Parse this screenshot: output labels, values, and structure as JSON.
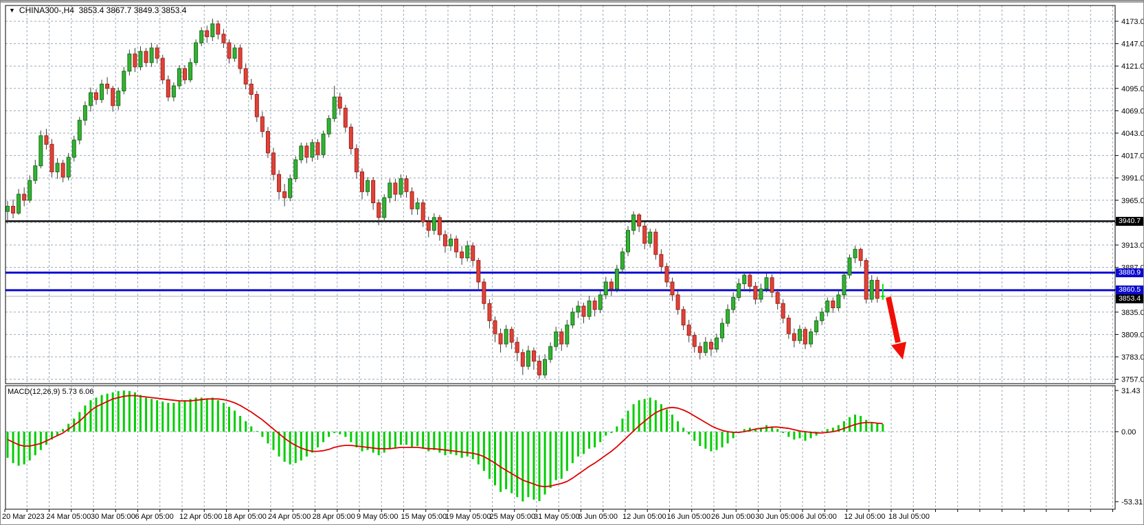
{
  "header": {
    "symbol_text": "CHINA300-,H4",
    "ohlc_text": "3853.4 3867.7 3849.3 3853.4",
    "dropdown_icon": "triangle-down"
  },
  "price_tags": [
    {
      "text": "3940.7",
      "color": "black",
      "price": 3940.7
    },
    {
      "text": "3880.9",
      "color": "blue",
      "price": 3880.9
    },
    {
      "text": "3860.5",
      "color": "blue",
      "price": 3860.5
    },
    {
      "text": "3853.4",
      "color": "black",
      "price": 3853.4
    }
  ],
  "macd_panel": {
    "label": "MACD(12,26,9)",
    "main_value": "5.73",
    "signal_value": "6.06"
  },
  "chart_data": {
    "type": "candlestick_with_macd",
    "symbol": "CHINA300-,H4",
    "timeframe": "H4",
    "current_bar_ohlc": {
      "open": 3853.4,
      "high": 3867.7,
      "low": 3849.3,
      "close": 3853.4
    },
    "price_axis": {
      "top": 4173.0,
      "bottom": 3757.0,
      "step": 26.0,
      "labels": [
        "4173.0",
        "4147.0",
        "4121.0",
        "4095.0",
        "4069.0",
        "4043.0",
        "4017.0",
        "3991.0",
        "3965.0",
        "3939.0",
        "3913.0",
        "3887.0",
        "3861.0",
        "3835.0",
        "3809.0",
        "3783.0",
        "3757.0"
      ]
    },
    "time_axis_labels": [
      "20 Mar 2023",
      "24 Mar 05:00",
      "30 Mar 05:00",
      "6 Apr 05:00",
      "12 Apr 05:00",
      "18 Apr 05:00",
      "24 Apr 05:00",
      "28 Apr 05:00",
      "9 May 05:00",
      "15 May 05:00",
      "19 May 05:00",
      "25 May 05:00",
      "31 May 05:00",
      "6 Jun 05:00",
      "12 Jun 05:00",
      "16 Jun 05:00",
      "26 Jun 05:00",
      "30 Jun 05:00",
      "6 Jul 05:00",
      "12 Jul 05:00",
      "18 Jul 05:00"
    ],
    "levels": {
      "hline_black": 3940.7,
      "hlines_blue": [
        3880.9,
        3860.5
      ],
      "current_price": 3853.4
    },
    "annotations": {
      "red_arrow": "thick red arrow pointing down-right below the broken blue support lines"
    },
    "colors": {
      "bull_fill": "#35b135",
      "bull_stroke": "#167016",
      "bear_fill": "#e04338",
      "bear_stroke": "#a32019",
      "wick": "#3a3a3a",
      "grid": "#9aa8b8",
      "level_blue": "#0b0bcf",
      "level_black": "#000000",
      "current_price_line": "#b4b4b4",
      "macd_hist": "#00ce00",
      "macd_signal": "#df0000",
      "arrow": "#f10e07",
      "last_bar": "#00e400"
    },
    "candles": [
      [
        3952,
        3964,
        3938,
        3958
      ],
      [
        3958,
        3966,
        3944,
        3950
      ],
      [
        3950,
        3978,
        3948,
        3972
      ],
      [
        3972,
        3980,
        3958,
        3965
      ],
      [
        3965,
        3994,
        3962,
        3988
      ],
      [
        3988,
        4012,
        3984,
        4005
      ],
      [
        4005,
        4046,
        4002,
        4040
      ],
      [
        4040,
        4048,
        4024,
        4030
      ],
      [
        4030,
        4036,
        3992,
        3998
      ],
      [
        3998,
        4014,
        3990,
        4008
      ],
      [
        4008,
        4012,
        3986,
        3992
      ],
      [
        3992,
        4020,
        3988,
        4015
      ],
      [
        4015,
        4040,
        4010,
        4035
      ],
      [
        4035,
        4062,
        4030,
        4058
      ],
      [
        4058,
        4080,
        4052,
        4075
      ],
      [
        4075,
        4096,
        4068,
        4090
      ],
      [
        4090,
        4094,
        4076,
        4082
      ],
      [
        4082,
        4105,
        4078,
        4100
      ],
      [
        4100,
        4108,
        4088,
        4095
      ],
      [
        4095,
        4098,
        4068,
        4075
      ],
      [
        4075,
        4096,
        4070,
        4092
      ],
      [
        4092,
        4120,
        4088,
        4115
      ],
      [
        4115,
        4140,
        4110,
        4135
      ],
      [
        4135,
        4142,
        4114,
        4120
      ],
      [
        4120,
        4144,
        4116,
        4138
      ],
      [
        4138,
        4142,
        4120,
        4125
      ],
      [
        4125,
        4148,
        4120,
        4142
      ],
      [
        4142,
        4146,
        4124,
        4130
      ],
      [
        4130,
        4134,
        4100,
        4105
      ],
      [
        4105,
        4110,
        4080,
        4085
      ],
      [
        4085,
        4102,
        4080,
        4098
      ],
      [
        4098,
        4122,
        4094,
        4118
      ],
      [
        4118,
        4122,
        4100,
        4105
      ],
      [
        4105,
        4130,
        4102,
        4125
      ],
      [
        4125,
        4152,
        4122,
        4148
      ],
      [
        4148,
        4166,
        4144,
        4162
      ],
      [
        4162,
        4168,
        4148,
        4155
      ],
      [
        4155,
        4176,
        4150,
        4170
      ],
      [
        4170,
        4174,
        4152,
        4158
      ],
      [
        4158,
        4164,
        4142,
        4148
      ],
      [
        4148,
        4152,
        4124,
        4130
      ],
      [
        4130,
        4146,
        4126,
        4142
      ],
      [
        4142,
        4146,
        4112,
        4118
      ],
      [
        4118,
        4124,
        4094,
        4100
      ],
      [
        4100,
        4106,
        4082,
        4088
      ],
      [
        4088,
        4092,
        4056,
        4062
      ],
      [
        4062,
        4068,
        4038,
        4045
      ],
      [
        4045,
        4050,
        4014,
        4020
      ],
      [
        4020,
        4026,
        3988,
        3995
      ],
      [
        3995,
        4000,
        3966,
        3975
      ],
      [
        3975,
        3984,
        3958,
        3968
      ],
      [
        3968,
        3995,
        3964,
        3990
      ],
      [
        3990,
        4016,
        3986,
        4012
      ],
      [
        4012,
        4032,
        4008,
        4028
      ],
      [
        4028,
        4032,
        4008,
        4015
      ],
      [
        4015,
        4036,
        4010,
        4032
      ],
      [
        4032,
        4036,
        4012,
        4018
      ],
      [
        4018,
        4046,
        4014,
        4042
      ],
      [
        4042,
        4064,
        4038,
        4060
      ],
      [
        4060,
        4098,
        4056,
        4085
      ],
      [
        4085,
        4090,
        4064,
        4072
      ],
      [
        4072,
        4076,
        4044,
        4050
      ],
      [
        4050,
        4054,
        4018,
        4025
      ],
      [
        4025,
        4030,
        3990,
        3998
      ],
      [
        3998,
        4002,
        3966,
        3975
      ],
      [
        3975,
        3992,
        3970,
        3988
      ],
      [
        3988,
        3992,
        3954,
        3962
      ],
      [
        3962,
        3966,
        3936,
        3945
      ],
      [
        3945,
        3972,
        3940,
        3968
      ],
      [
        3968,
        3990,
        3962,
        3985
      ],
      [
        3985,
        3990,
        3964,
        3972
      ],
      [
        3972,
        3995,
        3968,
        3990
      ],
      [
        3990,
        3994,
        3968,
        3975
      ],
      [
        3975,
        3980,
        3948,
        3955
      ],
      [
        3955,
        3968,
        3948,
        3962
      ],
      [
        3962,
        3966,
        3934,
        3940
      ],
      [
        3940,
        3946,
        3922,
        3930
      ],
      [
        3930,
        3950,
        3925,
        3945
      ],
      [
        3945,
        3948,
        3918,
        3925
      ],
      [
        3925,
        3930,
        3904,
        3912
      ],
      [
        3912,
        3926,
        3906,
        3920
      ],
      [
        3920,
        3924,
        3898,
        3905
      ],
      [
        3905,
        3912,
        3890,
        3898
      ],
      [
        3898,
        3918,
        3894,
        3912
      ],
      [
        3912,
        3916,
        3888,
        3895
      ],
      [
        3895,
        3898,
        3862,
        3870
      ],
      [
        3870,
        3874,
        3838,
        3845
      ],
      [
        3845,
        3850,
        3816,
        3825
      ],
      [
        3825,
        3830,
        3800,
        3810
      ],
      [
        3810,
        3816,
        3788,
        3798
      ],
      [
        3798,
        3820,
        3794,
        3815
      ],
      [
        3815,
        3818,
        3792,
        3800
      ],
      [
        3800,
        3806,
        3778,
        3788
      ],
      [
        3788,
        3792,
        3762,
        3772
      ],
      [
        3772,
        3796,
        3768,
        3790
      ],
      [
        3790,
        3794,
        3768,
        3778
      ],
      [
        3778,
        3785,
        3757.5,
        3762
      ],
      [
        3762,
        3786,
        3758,
        3780
      ],
      [
        3780,
        3800,
        3776,
        3795
      ],
      [
        3795,
        3818,
        3790,
        3812
      ],
      [
        3812,
        3816,
        3790,
        3798
      ],
      [
        3798,
        3826,
        3794,
        3820
      ],
      [
        3820,
        3840,
        3816,
        3835
      ],
      [
        3835,
        3848,
        3828,
        3842
      ],
      [
        3842,
        3846,
        3822,
        3830
      ],
      [
        3830,
        3854,
        3826,
        3848
      ],
      [
        3848,
        3852,
        3830,
        3838
      ],
      [
        3838,
        3860,
        3834,
        3855
      ],
      [
        3855,
        3876,
        3850,
        3870
      ],
      [
        3870,
        3874,
        3854,
        3862
      ],
      [
        3862,
        3890,
        3858,
        3885
      ],
      [
        3885,
        3910,
        3880,
        3905
      ],
      [
        3905,
        3935,
        3900,
        3930
      ],
      [
        3930,
        3952,
        3925,
        3948
      ],
      [
        3948,
        3950,
        3928,
        3935
      ],
      [
        3935,
        3940,
        3908,
        3915
      ],
      [
        3915,
        3932,
        3910,
        3928
      ],
      [
        3928,
        3932,
        3896,
        3902
      ],
      [
        3902,
        3908,
        3882,
        3888
      ],
      [
        3888,
        3892,
        3864,
        3870
      ],
      [
        3870,
        3875,
        3848,
        3855
      ],
      [
        3855,
        3860,
        3832,
        3838
      ],
      [
        3838,
        3842,
        3814,
        3820
      ],
      [
        3820,
        3826,
        3800,
        3808
      ],
      [
        3808,
        3812,
        3788,
        3795
      ],
      [
        3795,
        3800,
        3780,
        3788
      ],
      [
        3788,
        3806,
        3784,
        3800
      ],
      [
        3800,
        3804,
        3784,
        3792
      ],
      [
        3792,
        3810,
        3788,
        3805
      ],
      [
        3805,
        3828,
        3800,
        3822
      ],
      [
        3822,
        3844,
        3818,
        3838
      ],
      [
        3838,
        3858,
        3834,
        3852
      ],
      [
        3852,
        3874,
        3848,
        3868
      ],
      [
        3868,
        3881,
        3862,
        3878
      ],
      [
        3878,
        3880,
        3858,
        3865
      ],
      [
        3865,
        3870,
        3844,
        3850
      ],
      [
        3850,
        3868,
        3846,
        3862
      ],
      [
        3862,
        3880,
        3858,
        3875
      ],
      [
        3875,
        3879,
        3852,
        3858
      ],
      [
        3858,
        3862,
        3838,
        3845
      ],
      [
        3845,
        3850,
        3822,
        3828
      ],
      [
        3828,
        3832,
        3804,
        3810
      ],
      [
        3810,
        3816,
        3794,
        3802
      ],
      [
        3802,
        3820,
        3798,
        3815
      ],
      [
        3815,
        3818,
        3792,
        3798
      ],
      [
        3798,
        3816,
        3794,
        3812
      ],
      [
        3812,
        3830,
        3808,
        3825
      ],
      [
        3825,
        3840,
        3820,
        3835
      ],
      [
        3835,
        3852,
        3830,
        3848
      ],
      [
        3848,
        3852,
        3834,
        3840
      ],
      [
        3840,
        3860,
        3836,
        3855
      ],
      [
        3855,
        3882,
        3850,
        3878
      ],
      [
        3878,
        3902,
        3874,
        3898
      ],
      [
        3898,
        3912,
        3892,
        3908
      ],
      [
        3908,
        3910,
        3888,
        3895
      ],
      [
        3895,
        3898,
        3845,
        3850
      ],
      [
        3850,
        3878,
        3846,
        3872
      ],
      [
        3872,
        3876,
        3846,
        3851
      ],
      [
        3853.4,
        3867.7,
        3849.3,
        3853.4
      ]
    ],
    "macd": {
      "label": "MACD(12,26,9)",
      "main": 5.73,
      "signal": 6.06,
      "scale_labels": [
        "31.43",
        "0.00",
        "-53.31"
      ],
      "scale_max": 31.43,
      "scale_min": -53.31,
      "histogram": [
        -20,
        -24,
        -26,
        -25,
        -22,
        -18,
        -14,
        -10,
        -6,
        -3,
        2,
        6,
        10,
        15,
        20,
        24,
        26,
        28,
        29,
        30,
        31,
        31.4,
        31,
        30,
        28,
        26,
        25,
        24,
        23,
        22,
        22,
        23,
        24,
        25,
        26,
        26,
        25,
        26,
        24,
        22,
        19,
        16,
        12,
        8,
        4,
        0.5,
        -4,
        -9,
        -14,
        -19,
        -23,
        -25,
        -24,
        -22,
        -19,
        -16,
        -12,
        -8,
        -4,
        -1,
        -2,
        -4,
        -8,
        -12,
        -15,
        -14,
        -16,
        -18,
        -16,
        -13,
        -12,
        -10,
        -10,
        -12,
        -11,
        -13,
        -15,
        -14,
        -16,
        -18,
        -17,
        -18,
        -20,
        -19,
        -21,
        -25,
        -30,
        -36,
        -41,
        -46,
        -44,
        -47,
        -50,
        -53.3,
        -50,
        -52,
        -53,
        -48,
        -43,
        -37,
        -36,
        -30,
        -24,
        -19,
        -17,
        -13,
        -12,
        -8,
        -3,
        -1,
        4,
        10,
        16,
        21,
        24,
        25,
        26,
        24,
        21,
        17,
        13,
        8,
        3,
        -2,
        -7,
        -11,
        -13,
        -15,
        -14,
        -12,
        -9,
        -5,
        -1,
        2,
        3,
        2,
        3,
        5,
        4,
        2,
        -1,
        -4,
        -6,
        -5,
        -7,
        -5,
        -3,
        0.5,
        2,
        3,
        5,
        8,
        11,
        13,
        12,
        9,
        7,
        6.5,
        5.73
      ],
      "signal_line": [
        -6,
        -8,
        -10,
        -11,
        -11,
        -10,
        -9,
        -7,
        -5,
        -3,
        -1,
        2,
        5,
        8,
        12,
        16,
        19,
        21,
        23,
        25,
        26,
        27,
        27.5,
        27.5,
        27,
        26.5,
        26,
        25.5,
        25,
        24.5,
        24,
        23.5,
        23.5,
        23.5,
        24,
        24.5,
        25,
        25,
        25,
        24.5,
        23.5,
        22,
        20,
        17.5,
        15,
        12,
        9,
        5.5,
        2,
        -1.5,
        -5,
        -8,
        -10.5,
        -12.5,
        -14,
        -15,
        -15,
        -14.5,
        -13.5,
        -12,
        -11,
        -10.5,
        -10.5,
        -11,
        -11.5,
        -12,
        -12.5,
        -13,
        -13,
        -13,
        -12.5,
        -12,
        -12,
        -12,
        -12,
        -12.5,
        -13,
        -13,
        -13.5,
        -14,
        -14.5,
        -15,
        -15.5,
        -16,
        -16.5,
        -17.5,
        -19,
        -21.5,
        -24,
        -27,
        -29.5,
        -32,
        -34.5,
        -37,
        -38.5,
        -40,
        -41.5,
        -42,
        -41.5,
        -40.5,
        -39.5,
        -38,
        -35.5,
        -32.5,
        -29.5,
        -26.5,
        -24,
        -21,
        -18,
        -15,
        -11.5,
        -7.5,
        -3.5,
        0.5,
        4.5,
        8,
        11.5,
        14.5,
        16.5,
        18,
        18.5,
        18,
        16.5,
        14.5,
        12,
        9.5,
        7,
        4.5,
        2.5,
        1,
        0,
        -0.5,
        -0.5,
        0,
        1,
        2,
        2.5,
        3,
        3.5,
        3.5,
        3,
        2.5,
        1.5,
        0.5,
        0,
        -0.5,
        -1,
        -1,
        -0.5,
        0,
        1,
        2.5,
        4,
        5.5,
        6.5,
        7,
        7,
        6.5,
        6.06
      ]
    }
  }
}
